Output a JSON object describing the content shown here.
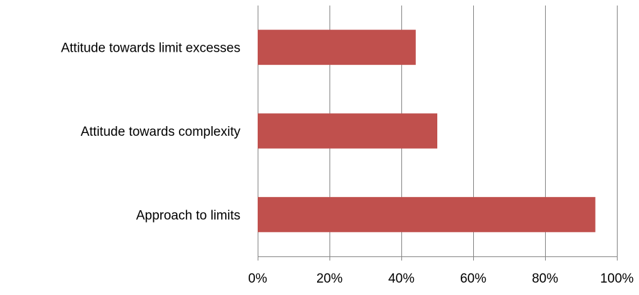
{
  "chart_data": {
    "type": "bar",
    "orientation": "horizontal",
    "title": "",
    "xlabel": "",
    "ylabel": "",
    "categories": [
      "Attitude towards limit excesses",
      "Attitude towards complexity",
      "Approach to limits"
    ],
    "values": [
      0.44,
      0.5,
      0.94
    ],
    "xlim": [
      0,
      1
    ],
    "ticks": [
      0,
      0.2,
      0.4,
      0.6,
      0.8,
      1.0
    ],
    "tick_labels": [
      "0%",
      "20%",
      "40%",
      "60%",
      "80%",
      "100%"
    ],
    "grid": true,
    "legend": "none",
    "bar_color": "#c0504d",
    "grid_color": "#868686"
  }
}
